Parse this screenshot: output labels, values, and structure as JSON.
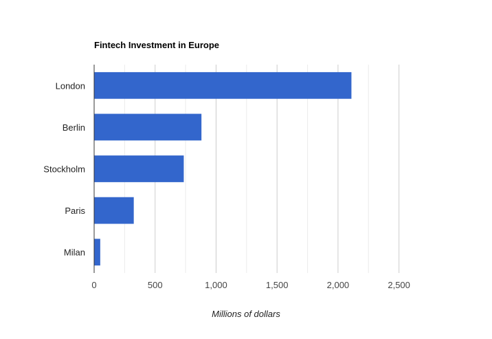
{
  "chart_data": {
    "type": "bar",
    "orientation": "horizontal",
    "title": "Fintech Investment in Europe",
    "xlabel": "Millions of dollars",
    "ylabel": "",
    "categories": [
      "London",
      "Berlin",
      "Stockholm",
      "Paris",
      "Milan"
    ],
    "values": [
      2110,
      880,
      735,
      325,
      50
    ],
    "xlim": [
      0,
      2750
    ],
    "ticks": [
      0,
      500,
      1000,
      1500,
      2000,
      2500
    ],
    "tick_labels": [
      "0",
      "500",
      "1,000",
      "1,500",
      "2,000",
      "2,500"
    ],
    "grid": true,
    "legend": "none",
    "colors": {
      "bar": "#3366cc",
      "grid": "#cccccc",
      "minor_grid": "#ebebeb",
      "axis": "#333333"
    }
  }
}
